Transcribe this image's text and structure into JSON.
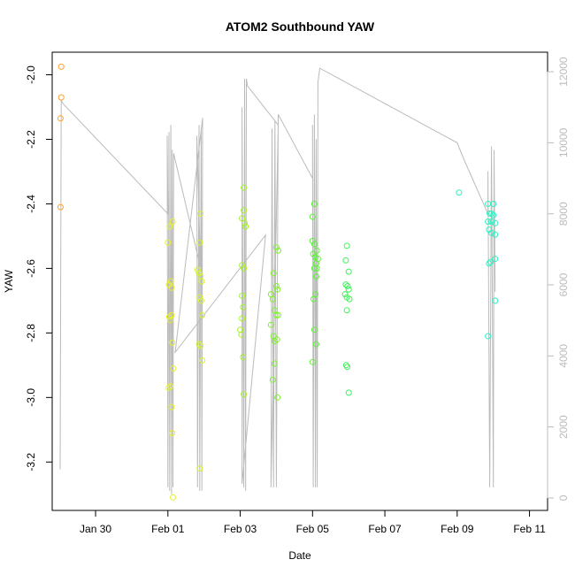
{
  "chart_data": {
    "type": "scatter",
    "title": "ATOM2 Southbound YAW",
    "xlabel": "Date",
    "ylabel": "YAW",
    "x_tick_labels": [
      "Jan 30",
      "Feb 01",
      "Feb 03",
      "Feb 05",
      "Feb 07",
      "Feb 09",
      "Feb 11"
    ],
    "x_tick_values": [
      -2,
      0,
      2,
      4,
      6,
      8,
      10
    ],
    "xlim": [
      -3.2,
      10.5
    ],
    "ylim": [
      -3.35,
      -1.93
    ],
    "y_ticks": [
      -3.2,
      -3.0,
      -2.8,
      -2.6,
      -2.4,
      -2.2,
      -2.0
    ],
    "y_tick_labels": [
      "-3.2",
      "-3.0",
      "-2.8",
      "-2.6",
      "-2.4",
      "-2.2",
      "-2.0"
    ],
    "y2_ticks": [
      0,
      2000,
      4000,
      6000,
      8000,
      10000,
      12000
    ],
    "y2_tick_labels": [
      "0",
      "2000",
      "4000",
      "6000",
      "8000",
      "10000",
      "12000"
    ],
    "y2lim": [
      -350,
      12550
    ],
    "grid": false,
    "series": [
      {
        "color": "#ff9f2a",
        "points": [
          {
            "x": -2.95,
            "y": -1.975
          },
          {
            "x": -2.95,
            "y": -2.07
          },
          {
            "x": -2.97,
            "y": -2.135
          },
          {
            "x": -2.97,
            "y": -2.41
          }
        ]
      },
      {
        "color": "#e7f22a",
        "points": [
          {
            "x": 0.0,
            "y": -2.52
          },
          {
            "x": 0.05,
            "y": -2.47
          },
          {
            "x": 0.03,
            "y": -2.65
          },
          {
            "x": 0.08,
            "y": -2.64
          },
          {
            "x": 0.1,
            "y": -2.66
          },
          {
            "x": 0.04,
            "y": -2.75
          },
          {
            "x": 0.06,
            "y": -2.76
          },
          {
            "x": 0.1,
            "y": -2.745
          },
          {
            "x": 0.12,
            "y": -2.83
          },
          {
            "x": 0.15,
            "y": -2.91
          },
          {
            "x": 0.02,
            "y": -2.97
          },
          {
            "x": 0.07,
            "y": -2.965
          },
          {
            "x": 0.1,
            "y": -3.03
          },
          {
            "x": 0.12,
            "y": -3.11
          },
          {
            "x": 0.14,
            "y": -3.31
          },
          {
            "x": 0.13,
            "y": -2.455
          }
        ]
      },
      {
        "color": "#d4f52a",
        "points": [
          {
            "x": 0.9,
            "y": -2.43
          },
          {
            "x": 0.88,
            "y": -2.52
          },
          {
            "x": 0.82,
            "y": -2.605
          },
          {
            "x": 0.86,
            "y": -2.615
          },
          {
            "x": 0.9,
            "y": -2.625
          },
          {
            "x": 0.93,
            "y": -2.64
          },
          {
            "x": 0.88,
            "y": -2.69
          },
          {
            "x": 0.92,
            "y": -2.7
          },
          {
            "x": 0.95,
            "y": -2.745
          },
          {
            "x": 0.86,
            "y": -2.835
          },
          {
            "x": 0.9,
            "y": -2.84
          },
          {
            "x": 0.95,
            "y": -2.885
          },
          {
            "x": 0.88,
            "y": -3.22
          }
        ]
      },
      {
        "color": "#a3f22a",
        "points": [
          {
            "x": 2.1,
            "y": -2.35
          },
          {
            "x": 2.1,
            "y": -2.42
          },
          {
            "x": 2.05,
            "y": -2.445
          },
          {
            "x": 2.12,
            "y": -2.46
          },
          {
            "x": 2.15,
            "y": -2.47
          },
          {
            "x": 2.05,
            "y": -2.59
          },
          {
            "x": 2.1,
            "y": -2.6
          },
          {
            "x": 2.05,
            "y": -2.685
          },
          {
            "x": 2.08,
            "y": -2.72
          },
          {
            "x": 2.05,
            "y": -2.755
          },
          {
            "x": 2.0,
            "y": -2.79
          },
          {
            "x": 2.03,
            "y": -2.805
          },
          {
            "x": 2.08,
            "y": -2.875
          },
          {
            "x": 2.1,
            "y": -2.99
          }
        ]
      },
      {
        "color": "#7ef22a",
        "points": [
          {
            "x": 3.0,
            "y": -2.535
          },
          {
            "x": 3.05,
            "y": -2.545
          },
          {
            "x": 2.92,
            "y": -2.615
          },
          {
            "x": 3.0,
            "y": -2.655
          },
          {
            "x": 3.03,
            "y": -2.665
          },
          {
            "x": 2.85,
            "y": -2.68
          },
          {
            "x": 2.9,
            "y": -2.695
          },
          {
            "x": 2.95,
            "y": -2.73
          },
          {
            "x": 3.0,
            "y": -2.745
          },
          {
            "x": 3.05,
            "y": -2.745
          },
          {
            "x": 2.85,
            "y": -2.775
          },
          {
            "x": 2.92,
            "y": -2.81
          },
          {
            "x": 2.95,
            "y": -2.825
          },
          {
            "x": 3.02,
            "y": -2.82
          },
          {
            "x": 2.95,
            "y": -2.895
          },
          {
            "x": 2.9,
            "y": -2.945
          },
          {
            "x": 3.03,
            "y": -3.0
          }
        ]
      },
      {
        "color": "#5ef23a",
        "points": [
          {
            "x": 4.05,
            "y": -2.4
          },
          {
            "x": 4.0,
            "y": -2.44
          },
          {
            "x": 4.0,
            "y": -2.515
          },
          {
            "x": 4.05,
            "y": -2.525
          },
          {
            "x": 4.12,
            "y": -2.545
          },
          {
            "x": 4.02,
            "y": -2.555
          },
          {
            "x": 4.08,
            "y": -2.565
          },
          {
            "x": 4.15,
            "y": -2.57
          },
          {
            "x": 4.1,
            "y": -2.585
          },
          {
            "x": 4.05,
            "y": -2.6
          },
          {
            "x": 4.12,
            "y": -2.6
          },
          {
            "x": 4.1,
            "y": -2.625
          },
          {
            "x": 4.08,
            "y": -2.68
          },
          {
            "x": 4.03,
            "y": -2.695
          },
          {
            "x": 4.05,
            "y": -2.79
          },
          {
            "x": 4.1,
            "y": -2.835
          },
          {
            "x": 4.0,
            "y": -2.89
          }
        ]
      },
      {
        "color": "#3ef25a",
        "points": [
          {
            "x": 4.95,
            "y": -2.53
          },
          {
            "x": 4.92,
            "y": -2.575
          },
          {
            "x": 5.0,
            "y": -2.61
          },
          {
            "x": 4.92,
            "y": -2.65
          },
          {
            "x": 4.97,
            "y": -2.655
          },
          {
            "x": 5.0,
            "y": -2.665
          },
          {
            "x": 4.9,
            "y": -2.68
          },
          {
            "x": 4.95,
            "y": -2.69
          },
          {
            "x": 5.02,
            "y": -2.695
          },
          {
            "x": 4.95,
            "y": -2.73
          },
          {
            "x": 4.93,
            "y": -2.9
          },
          {
            "x": 4.96,
            "y": -2.905
          },
          {
            "x": 5.0,
            "y": -2.985
          }
        ]
      },
      {
        "color": "#2af2c0",
        "points": [
          {
            "x": 8.05,
            "y": -2.365
          },
          {
            "x": 8.85,
            "y": -2.4
          },
          {
            "x": 9.0,
            "y": -2.4
          },
          {
            "x": 8.9,
            "y": -2.43
          },
          {
            "x": 8.95,
            "y": -2.43
          },
          {
            "x": 9.0,
            "y": -2.435
          },
          {
            "x": 8.85,
            "y": -2.455
          },
          {
            "x": 8.95,
            "y": -2.455
          },
          {
            "x": 9.05,
            "y": -2.46
          },
          {
            "x": 8.88,
            "y": -2.48
          },
          {
            "x": 8.95,
            "y": -2.49
          },
          {
            "x": 9.05,
            "y": -2.495
          },
          {
            "x": 9.05,
            "y": -2.57
          },
          {
            "x": 8.92,
            "y": -2.58
          },
          {
            "x": 8.88,
            "y": -2.585
          },
          {
            "x": 9.05,
            "y": -2.7
          },
          {
            "x": 8.85,
            "y": -2.81
          }
        ]
      }
    ],
    "line_series": {
      "color": "#bbbbbb",
      "axis": "right",
      "points": [
        {
          "x": -2.98,
          "y": 800
        },
        {
          "x": -2.95,
          "y": 11200
        },
        {
          "x": -2.9,
          "y": 11100
        },
        {
          "x": 0.0,
          "y": 8000
        },
        {
          "x": -0.02,
          "y": 10200
        },
        {
          "x": 0.0,
          "y": 300
        },
        {
          "x": 0.03,
          "y": 10300
        },
        {
          "x": 0.05,
          "y": 200
        },
        {
          "x": 0.08,
          "y": 10500
        },
        {
          "x": 0.1,
          "y": 100
        },
        {
          "x": 0.12,
          "y": 9800
        },
        {
          "x": 0.14,
          "y": 300
        },
        {
          "x": 0.16,
          "y": 9700
        },
        {
          "x": 0.9,
          "y": 6500
        },
        {
          "x": 0.8,
          "y": 10200
        },
        {
          "x": 0.82,
          "y": 300
        },
        {
          "x": 0.86,
          "y": 10500
        },
        {
          "x": 0.88,
          "y": 200
        },
        {
          "x": 0.92,
          "y": 10400
        },
        {
          "x": 0.94,
          "y": 200
        },
        {
          "x": 0.96,
          "y": 10700
        },
        {
          "x": 0.2,
          "y": 4100
        },
        {
          "x": 2.7,
          "y": 7400
        },
        {
          "x": 2.05,
          "y": 400
        },
        {
          "x": 2.05,
          "y": 11000
        },
        {
          "x": 2.1,
          "y": 300
        },
        {
          "x": 2.12,
          "y": 11800
        },
        {
          "x": 2.15,
          "y": 200
        },
        {
          "x": 2.17,
          "y": 11800
        },
        {
          "x": 2.2,
          "y": 11600
        },
        {
          "x": 3.05,
          "y": 10500
        },
        {
          "x": 2.85,
          "y": 300
        },
        {
          "x": 2.88,
          "y": 10400
        },
        {
          "x": 2.92,
          "y": 300
        },
        {
          "x": 2.96,
          "y": 10600
        },
        {
          "x": 3.0,
          "y": 300
        },
        {
          "x": 3.05,
          "y": 10800
        },
        {
          "x": 4.0,
          "y": 9000
        },
        {
          "x": 4.0,
          "y": 10500
        },
        {
          "x": 4.02,
          "y": 300
        },
        {
          "x": 4.05,
          "y": 10800
        },
        {
          "x": 4.08,
          "y": 300
        },
        {
          "x": 4.1,
          "y": 10100
        },
        {
          "x": 4.13,
          "y": 300
        },
        {
          "x": 4.15,
          "y": 11700
        },
        {
          "x": 4.2,
          "y": 12100
        },
        {
          "x": 8.0,
          "y": 10000
        },
        {
          "x": 8.2,
          "y": 9500
        },
        {
          "x": 8.85,
          "y": 8000
        },
        {
          "x": 8.85,
          "y": 9200
        },
        {
          "x": 8.9,
          "y": 300
        },
        {
          "x": 8.95,
          "y": 9900
        },
        {
          "x": 9.0,
          "y": 300
        },
        {
          "x": 9.02,
          "y": 9800
        },
        {
          "x": 9.05,
          "y": 5800
        }
      ]
    }
  }
}
